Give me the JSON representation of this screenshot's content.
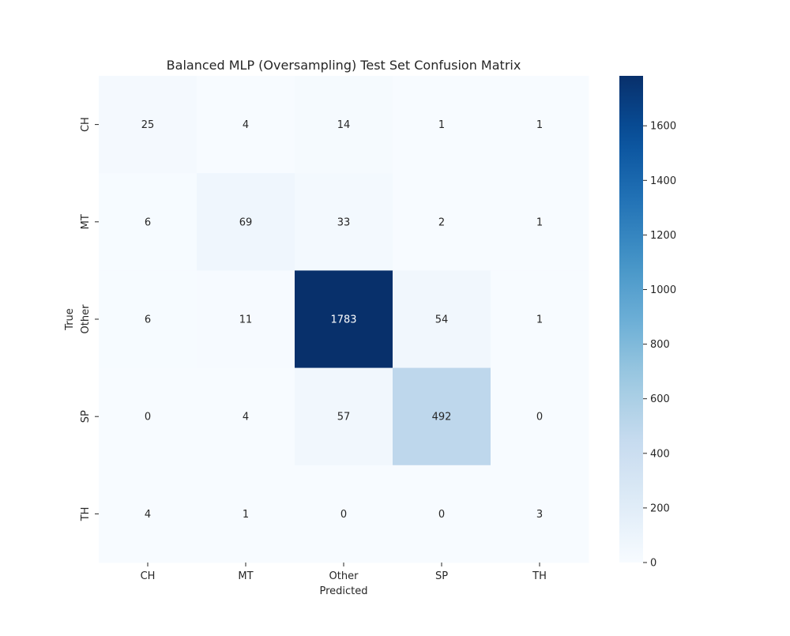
{
  "chart_data": {
    "type": "heatmap",
    "title": "Balanced MLP (Oversampling) Test Set Confusion Matrix",
    "xlabel": "Predicted",
    "ylabel": "True",
    "x_categories": [
      "CH",
      "MT",
      "Other",
      "SP",
      "TH"
    ],
    "y_categories": [
      "CH",
      "MT",
      "Other",
      "SP",
      "TH"
    ],
    "values": [
      [
        25,
        4,
        14,
        1,
        1
      ],
      [
        6,
        69,
        33,
        2,
        1
      ],
      [
        6,
        11,
        1783,
        54,
        1
      ],
      [
        0,
        4,
        57,
        492,
        0
      ],
      [
        4,
        1,
        0,
        0,
        3
      ]
    ],
    "colormap": "Blues",
    "colorbar": {
      "min": 0,
      "max": 1783,
      "ticks": [
        0,
        200,
        400,
        600,
        800,
        1000,
        1200,
        1400,
        1600
      ]
    },
    "colors": {
      "low": "#f7fbff",
      "high": "#08306b",
      "dark_text": "#262626",
      "light_text": "#ffffff"
    }
  }
}
